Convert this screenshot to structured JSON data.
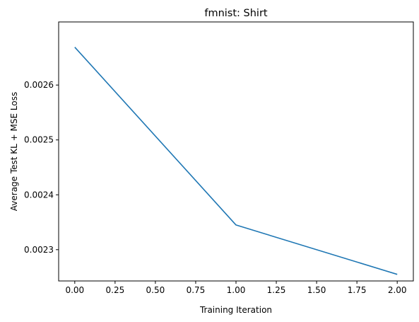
{
  "chart_data": {
    "type": "line",
    "title": "fmnist: Shirt",
    "xlabel": "Training Iteration",
    "ylabel": "Average Test KL  + MSE Loss",
    "xlim": [
      -0.1,
      2.1
    ],
    "ylim": [
      0.002243,
      0.002715
    ],
    "x_ticks": [
      0.0,
      0.25,
      0.5,
      0.75,
      1.0,
      1.25,
      1.5,
      1.75,
      2.0
    ],
    "x_tick_labels": [
      "0.00",
      "0.25",
      "0.50",
      "0.75",
      "1.00",
      "1.25",
      "1.50",
      "1.75",
      "2.00"
    ],
    "y_ticks": [
      0.0023,
      0.0024,
      0.0025,
      0.0026
    ],
    "y_tick_labels": [
      "0.0023",
      "0.0024",
      "0.0025",
      "0.0026"
    ],
    "grid": false,
    "series": [
      {
        "color": "#1f77b4",
        "x": [
          0,
          1,
          2
        ],
        "y": [
          0.002669,
          0.002345,
          0.002255
        ]
      }
    ]
  }
}
